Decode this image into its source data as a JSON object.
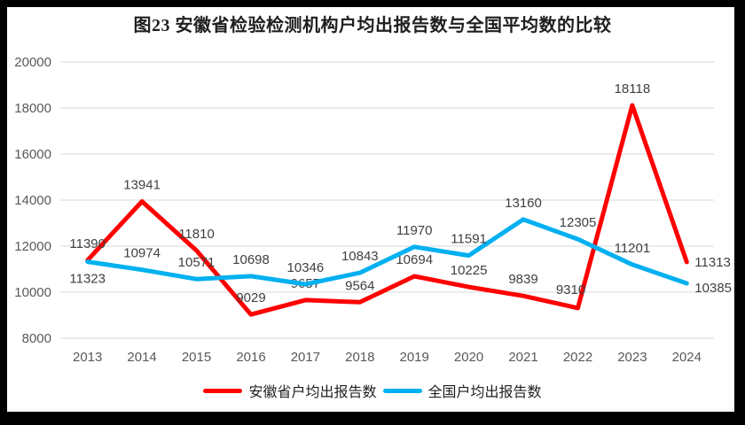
{
  "window": {
    "frame_color": "#000000",
    "background_color": "#FFFFFF"
  },
  "title": "图23 安徽省检验检测机构户均出报告数与全国平均数的比较",
  "legend": {
    "items": [
      {
        "label": "安徽省户均出报告数",
        "color": "#FF0000"
      },
      {
        "label": "全国户均出报告数",
        "color": "#00B0F0"
      }
    ]
  },
  "chart_data": {
    "type": "line",
    "title": "图23 安徽省检验检测机构户均出报告数与全国平均数的比较",
    "categories": [
      "2013",
      "2014",
      "2015",
      "2016",
      "2017",
      "2018",
      "2019",
      "2020",
      "2021",
      "2022",
      "2023",
      "2024"
    ],
    "series": [
      {
        "name": "安徽省户均出报告数",
        "color": "#FF0000",
        "values": [
          11390,
          13941,
          11810,
          9029,
          9657,
          9564,
          10694,
          10225,
          9839,
          9310,
          18118,
          11313
        ],
        "label_default": {
          "dx": 0,
          "dy": -14,
          "anchor": "middle"
        },
        "label_overrides": {
          "9": {
            "dx": -8,
            "dy": -16,
            "anchor": "middle"
          },
          "11": {
            "dx": 9,
            "dy": 5,
            "anchor": "start"
          }
        }
      },
      {
        "name": "全国户均出报告数",
        "color": "#00B0F0",
        "values": [
          11323,
          10974,
          10571,
          10698,
          10346,
          10843,
          11970,
          11591,
          13160,
          12305,
          11201,
          10385
        ],
        "label_default": {
          "dx": 0,
          "dy": -14,
          "anchor": "middle"
        },
        "label_overrides": {
          "0": {
            "dx": 0,
            "dy": 24,
            "anchor": "middle"
          },
          "11": {
            "dx": 9,
            "dy": 10,
            "anchor": "start"
          }
        }
      }
    ],
    "xlabel": "",
    "ylabel": "",
    "ylim": [
      8000,
      20000
    ],
    "ytick_step": 2000,
    "yticks": [
      8000,
      10000,
      12000,
      14000,
      16000,
      18000,
      20000
    ],
    "grid": true,
    "data_labels": true,
    "legend_position": "bottom",
    "grid_color": "#D9D9D9",
    "axis_label_color": "#595959",
    "data_label_color": "#404040",
    "line_width": 5
  }
}
